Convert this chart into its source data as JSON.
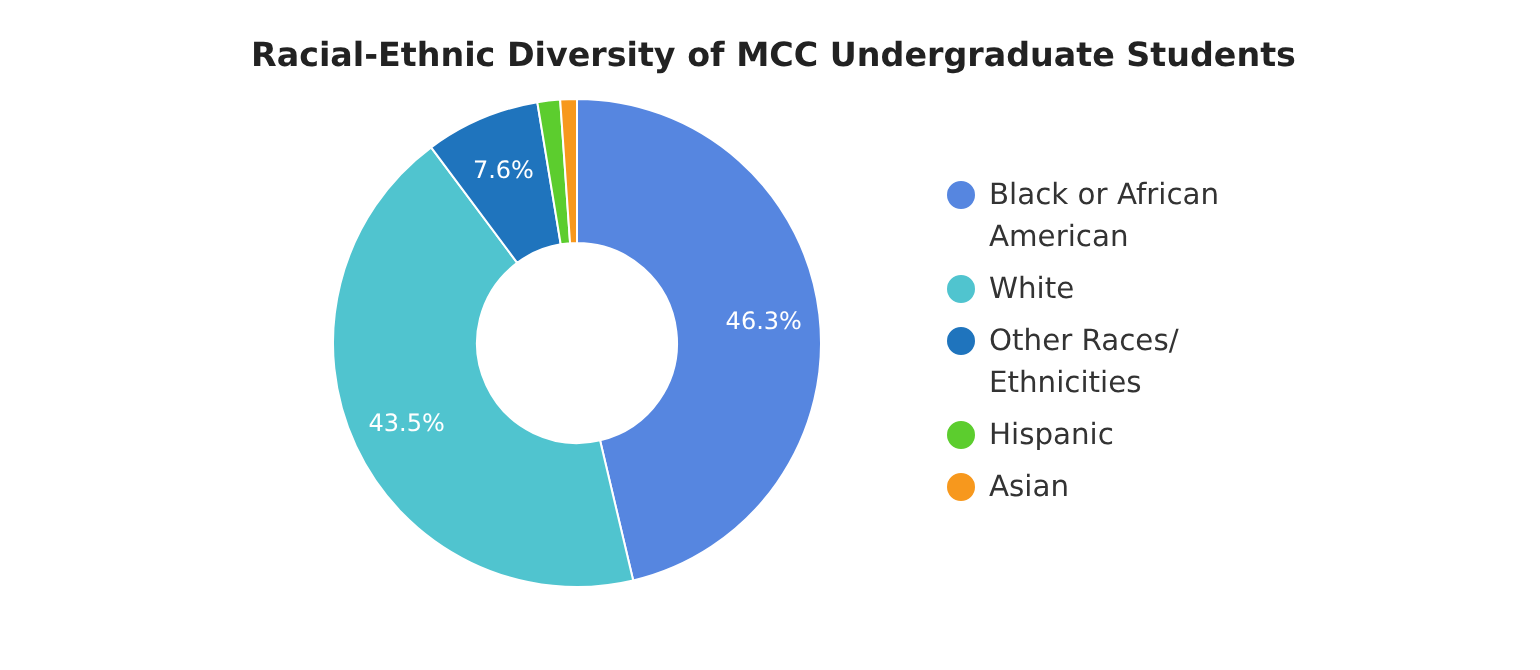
{
  "chart_data": {
    "type": "donut",
    "title": "Racial-Ethnic Diversity of MCC Undergraduate Students",
    "categories": [
      "Black or African American",
      "White",
      "Other Races/ Ethnicities",
      "Hispanic",
      "Asian"
    ],
    "values": [
      46.3,
      43.5,
      7.6,
      1.5,
      1.1
    ],
    "colors": [
      "#5686e0",
      "#50c4cf",
      "#1f74bd",
      "#5ccd2e",
      "#f7981d"
    ],
    "value_labels": [
      "46.3%",
      "43.5%",
      "7.6%",
      null,
      null
    ],
    "legend": "right"
  }
}
